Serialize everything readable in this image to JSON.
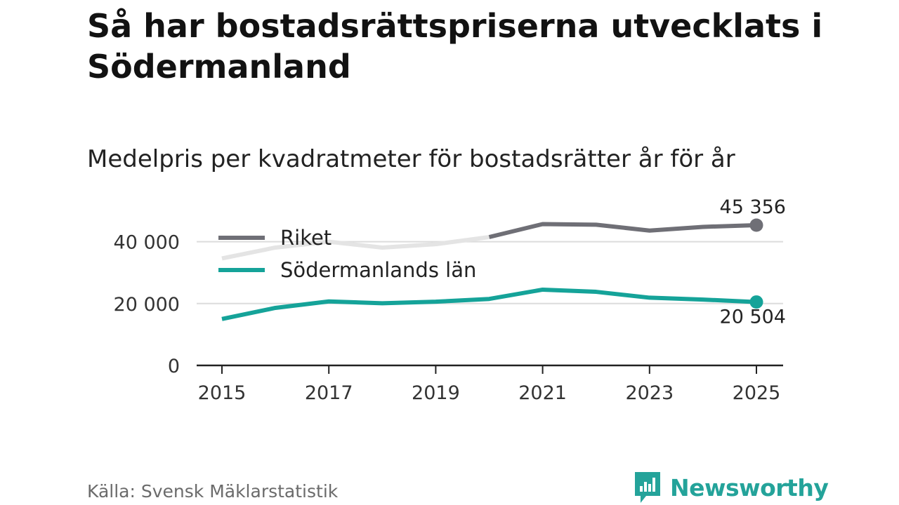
{
  "title": "Så har bostadsrättspriserna utvecklats i Södermanland",
  "subtitle": "Medelpris per kvadratmeter för bostadsrätter år för år",
  "source": "Källa: Svensk Mäklarstatistik",
  "brand": {
    "name": "Newsworthy",
    "icon": "newsworthy-logo-icon",
    "color": "#24a39a"
  },
  "chart_data": {
    "type": "line",
    "title": "Medelpris per kvadratmeter för bostadsrätter år för år",
    "x": [
      2015,
      2016,
      2017,
      2018,
      2019,
      2020,
      2021,
      2022,
      2023,
      2024,
      2025
    ],
    "xticks": [
      2015,
      2017,
      2019,
      2021,
      2023,
      2025
    ],
    "xtick_labels": [
      "2015",
      "2017",
      "2019",
      "2021",
      "2023",
      "2025"
    ],
    "ylim": [
      0,
      45356
    ],
    "yticks": [
      0,
      20000,
      40000
    ],
    "ytick_labels": [
      "0",
      "20 000",
      "40 000"
    ],
    "grid": true,
    "legend_position": "top-left",
    "series": [
      {
        "name": "Riket",
        "color": "#6f6f76",
        "faded_color": "#e4e4e4",
        "faded_until": 2020,
        "values": [
          34600,
          38100,
          40000,
          38100,
          39200,
          41500,
          45700,
          45500,
          43600,
          44800,
          45356
        ],
        "end_label": "45 356"
      },
      {
        "name": "Södermanlands län",
        "color": "#15a399",
        "values": [
          15000,
          18600,
          20700,
          20100,
          20600,
          21500,
          24500,
          23800,
          21900,
          21300,
          20504
        ],
        "end_label": "20 504"
      }
    ]
  }
}
